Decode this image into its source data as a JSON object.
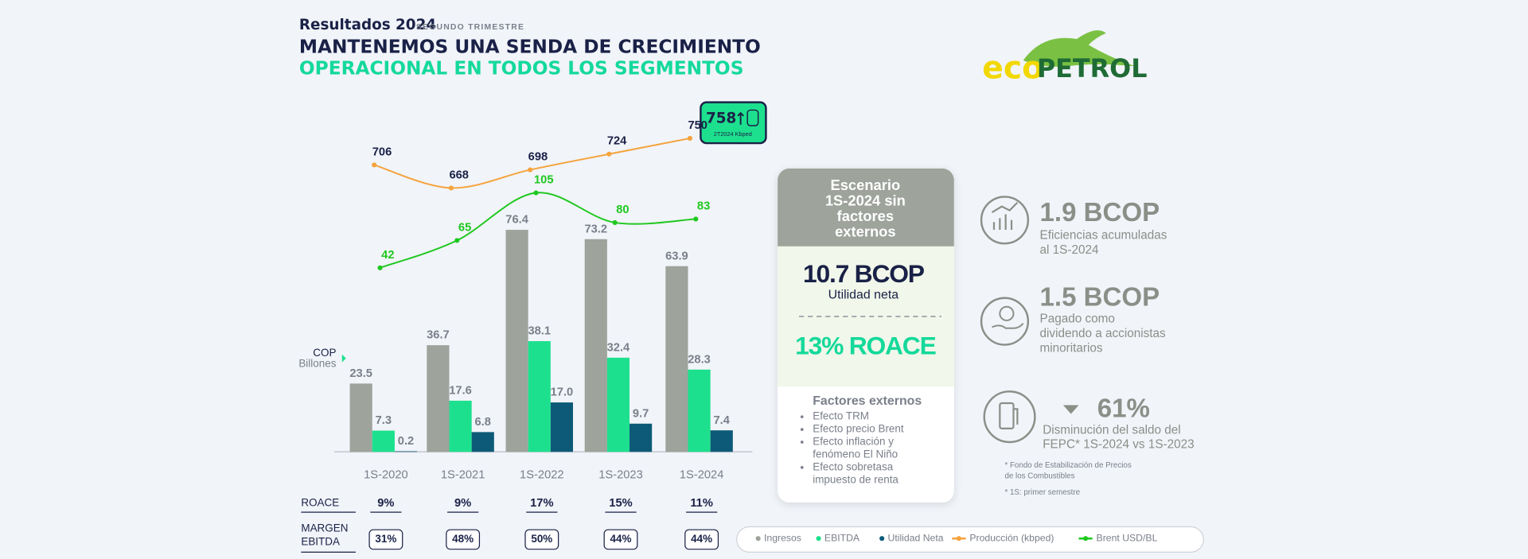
{
  "header": {
    "title_small": "Resultados 2024",
    "subtitle_small": "SEGUNDO TRIMESTRE",
    "title_line1": "MANTENEMOS UNA SENDA DE CRECIMIENTO",
    "title_line2": "OPERACIONAL EN TODOS LOS SEGMENTOS"
  },
  "logo": {
    "part1": "eco",
    "part2": "PETROL"
  },
  "chart_data": {
    "type": "bar",
    "unit_label": [
      "COP",
      "Billones"
    ],
    "categories": [
      "1S-2020",
      "1S-2021",
      "1S-2022",
      "1S-2023",
      "1S-2024"
    ],
    "series": [
      {
        "name": "Ingresos",
        "color": "#9ea39b",
        "values": [
          23.5,
          36.7,
          76.4,
          73.2,
          63.9
        ]
      },
      {
        "name": "EBITDA",
        "color": "#1de08e",
        "values": [
          7.3,
          17.6,
          38.1,
          32.4,
          28.3
        ]
      },
      {
        "name": "Utilidad Neta",
        "color": "#0d5a78",
        "values": [
          0.2,
          6.8,
          17.0,
          9.7,
          7.4
        ],
        "value_labels": [
          "0.2",
          "6.8",
          "17.0",
          "9.7",
          "7.4"
        ]
      },
      {
        "name": "Producción (kbped)",
        "type": "line",
        "color": "#f5a33c",
        "label_color": "#1a2147",
        "values": [
          706,
          668,
          698,
          724,
          750
        ]
      },
      {
        "name": "Brent USD/BL",
        "type": "line",
        "color": "#1ec81e",
        "label_color": "#1ec81e",
        "values": [
          42,
          65,
          105,
          80,
          83
        ]
      }
    ],
    "badge": {
      "value": 758,
      "label": "2T2024 Kbped"
    },
    "rows": [
      {
        "label": [
          "ROACE"
        ],
        "values": [
          9,
          9,
          17,
          15,
          11
        ],
        "value_labels": [
          "9%",
          "9%",
          "17%",
          "15%",
          "11%"
        ]
      },
      {
        "label": [
          "MARGEN",
          "EBITDA"
        ],
        "values": [
          31,
          48,
          50,
          44,
          44
        ],
        "value_labels": [
          "31%",
          "48%",
          "50%",
          "44%",
          "44%"
        ]
      }
    ]
  },
  "scenario": {
    "title": [
      "Escenario",
      "1S-2024 sin",
      "factores",
      "externos"
    ],
    "net_income": "10.7 BCOP",
    "net_income_label": "Utilidad neta",
    "roace": "13% ROACE",
    "factors_title": "Factores externos",
    "factors": [
      [
        "Efecto TRM"
      ],
      [
        "Efecto precio Brent"
      ],
      [
        "Efecto inflación y",
        "fenómeno El Niño"
      ],
      [
        "Efecto sobretasa",
        "impuesto de renta"
      ]
    ]
  },
  "kpis": [
    {
      "value": "1.9 BCOP",
      "text": [
        "Eficiencias acumuladas",
        "al 1S-2024"
      ]
    },
    {
      "value": "1.5 BCOP",
      "text": [
        "Pagado como",
        "dividendo a accionistas",
        "minoritarios"
      ]
    },
    {
      "value": "61%",
      "text": [
        "Disminución del saldo del",
        "FEPC* 1S-2024 vs 1S-2023"
      ]
    }
  ],
  "notes": [
    [
      "* Fondo de Estabilización de Precios",
      "de los Combustibles"
    ],
    [
      "* 1S: primer semestre"
    ]
  ]
}
